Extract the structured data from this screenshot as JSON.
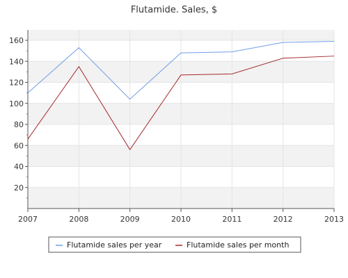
{
  "chart_data": {
    "type": "line",
    "title": "Flutamide. Sales, $",
    "xlabel": "",
    "ylabel": "",
    "x": [
      "2007",
      "2008",
      "2009",
      "2010",
      "2011",
      "2012",
      "2013"
    ],
    "ylim": [
      0,
      160
    ],
    "yticks": [
      20,
      40,
      60,
      80,
      100,
      120,
      140,
      160
    ],
    "grid": true,
    "legend_position": "bottom",
    "series": [
      {
        "name": "Flutamide sales per year",
        "color": "#6f9de8",
        "values": [
          110,
          153,
          104,
          148,
          149,
          158,
          159
        ]
      },
      {
        "name": "Flutamide sales per month",
        "color": "#a52a2a",
        "values": [
          66,
          135,
          56,
          127,
          128,
          143,
          145
        ]
      }
    ]
  }
}
